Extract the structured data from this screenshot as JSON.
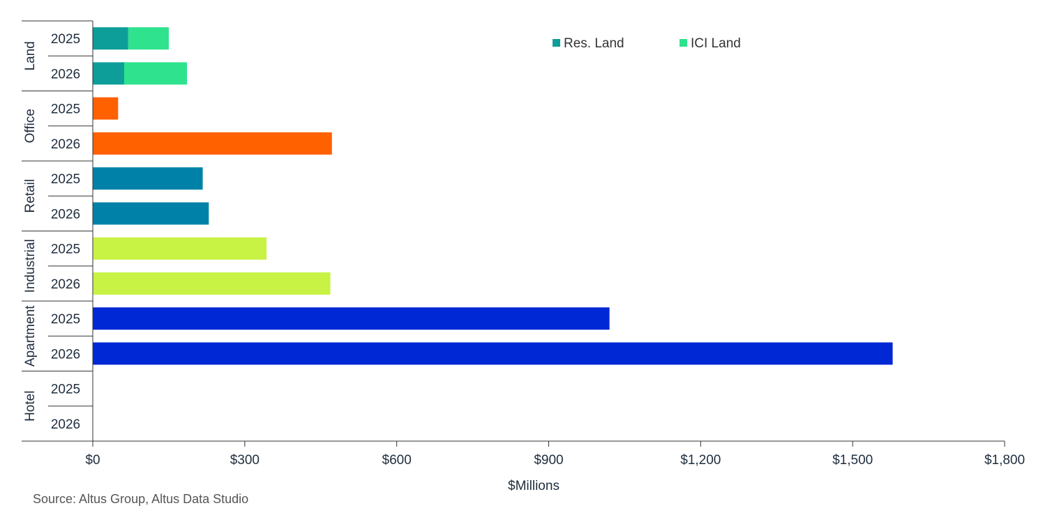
{
  "chart_data": {
    "type": "bar",
    "orientation": "horizontal",
    "stacked": true,
    "groups": [
      {
        "name": "Land",
        "years": [
          "2025",
          "2026"
        ]
      },
      {
        "name": "Office",
        "years": [
          "2025",
          "2026"
        ]
      },
      {
        "name": "Retail",
        "years": [
          "2025",
          "2026"
        ]
      },
      {
        "name": "Industrial",
        "years": [
          "2025",
          "2026"
        ]
      },
      {
        "name": "Apartment",
        "years": [
          "2025",
          "2026"
        ]
      },
      {
        "name": "Hotel",
        "years": [
          "2025",
          "2026"
        ]
      }
    ],
    "rows": [
      {
        "group": "Land",
        "year": "2025",
        "segments": [
          {
            "series": "Res. Land",
            "value": 70,
            "color": "#0E9E9A"
          },
          {
            "series": "ICI Land",
            "value": 80,
            "color": "#2EE28E"
          }
        ]
      },
      {
        "group": "Land",
        "year": "2026",
        "segments": [
          {
            "series": "Res. Land",
            "value": 62,
            "color": "#0E9E9A"
          },
          {
            "series": "ICI Land",
            "value": 124,
            "color": "#2EE28E"
          }
        ]
      },
      {
        "group": "Office",
        "year": "2025",
        "segments": [
          {
            "value": 50,
            "color": "#FF6000"
          }
        ]
      },
      {
        "group": "Office",
        "year": "2026",
        "segments": [
          {
            "value": 472,
            "color": "#FF6000"
          }
        ]
      },
      {
        "group": "Retail",
        "year": "2025",
        "segments": [
          {
            "value": 217,
            "color": "#0082A8"
          }
        ]
      },
      {
        "group": "Retail",
        "year": "2026",
        "segments": [
          {
            "value": 229,
            "color": "#0082A8"
          }
        ]
      },
      {
        "group": "Industrial",
        "year": "2025",
        "segments": [
          {
            "value": 343,
            "color": "#C8F244"
          }
        ]
      },
      {
        "group": "Industrial",
        "year": "2026",
        "segments": [
          {
            "value": 469,
            "color": "#C8F244"
          }
        ]
      },
      {
        "group": "Apartment",
        "year": "2025",
        "segments": [
          {
            "value": 1020,
            "color": "#0028D4"
          }
        ]
      },
      {
        "group": "Apartment",
        "year": "2026",
        "segments": [
          {
            "value": 1579,
            "color": "#0028D4"
          }
        ]
      },
      {
        "group": "Hotel",
        "year": "2025",
        "segments": []
      },
      {
        "group": "Hotel",
        "year": "2026",
        "segments": []
      }
    ],
    "legend": [
      {
        "name": "Res. Land",
        "color": "#0E9E9A"
      },
      {
        "name": "ICI Land",
        "color": "#2EE28E"
      }
    ],
    "legend_position": "top-right",
    "xlim": [
      0,
      1800
    ],
    "xticks": [
      0,
      300,
      600,
      900,
      1200,
      1500,
      1800
    ],
    "xtick_labels": [
      "$0",
      "$300",
      "$600",
      "$900",
      "$1,200",
      "$1,500",
      "$1,800"
    ],
    "xlabel": "$Millions",
    "grid": false
  },
  "source": "Source:  Altus Group, Altus Data Studio"
}
